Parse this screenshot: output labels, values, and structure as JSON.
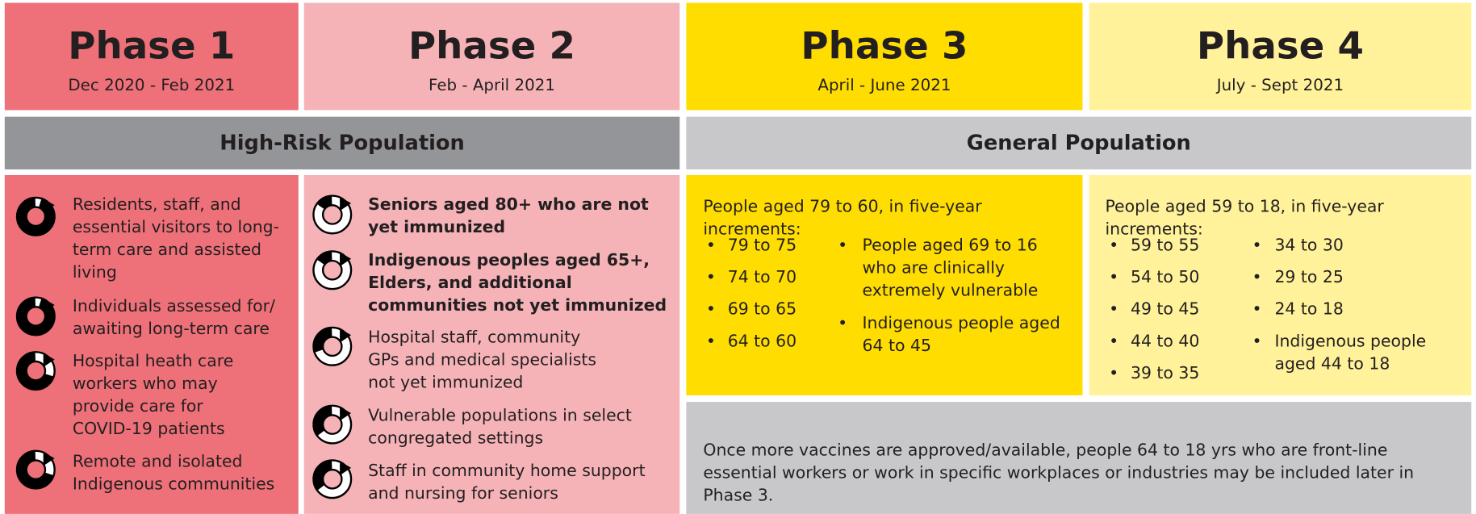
{
  "phases": [
    {
      "title": "Phase 1",
      "dates": "Dec 2020 - Feb 2021"
    },
    {
      "title": "Phase 2",
      "dates": "Feb - April 2021"
    },
    {
      "title": "Phase 3",
      "dates": "April - June 2021"
    },
    {
      "title": "Phase 4",
      "dates": "July - Sept 2021"
    }
  ],
  "bands": [
    "High-Risk Population",
    "General Population"
  ],
  "phase1": {
    "items": [
      "Residents, staff, and essential visitors to long-term care and assisted living",
      "Individuals assessed for/ awaiting long-term care",
      "Hospital heath care workers who may provide care for COVID-19 patients",
      "Remote and isolated Indigenous communities"
    ]
  },
  "phase2": {
    "items": [
      "Seniors aged 80+ who are not yet immunized",
      "Indigenous peoples aged 65+, Elders, and additional communities not yet immunized",
      "Hospital staff, community GPs and medical specialists not yet immunized",
      "Vulnerable populations in select congregated settings",
      "Staff in community home support and nursing for seniors"
    ]
  },
  "phase3": {
    "intro": "People aged 79 to 60, in five-year increments:",
    "col1": [
      "79 to 75",
      "74 to 70",
      "69 to 65",
      "64 to 60"
    ],
    "col2": [
      "People aged 69 to 16 who are clinically extremely vulnerable",
      "Indigenous people aged 64 to 45"
    ]
  },
  "phase4": {
    "intro": "People aged 59 to 18, in five-year increments:",
    "col1": [
      "59 to 55",
      "54 to 50",
      "49 to 45",
      "44 to 40",
      "39 to 35"
    ],
    "col2": [
      "34 to 30",
      "29 to 25",
      "24 to 18",
      "Indigenous people aged 44 to 18"
    ]
  },
  "note": "Once more vaccines are approved/available, people 64 to 18 yrs who are front-line essential workers or work in specific workplaces or industries may be included later in Phase 3."
}
